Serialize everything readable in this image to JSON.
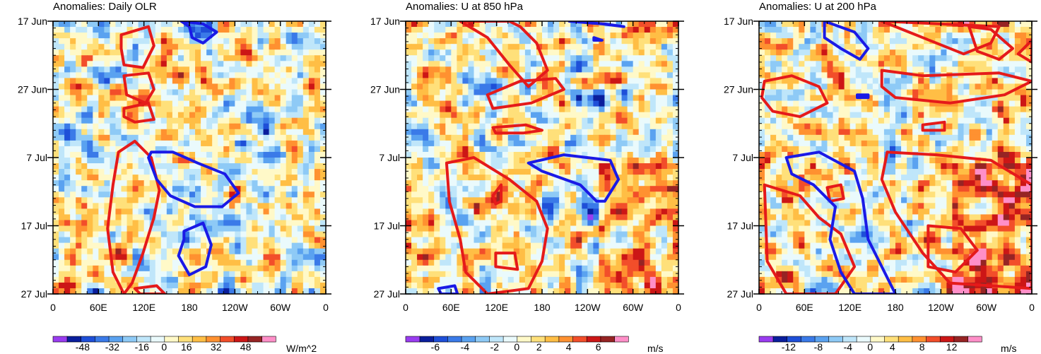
{
  "figure": {
    "colors": {
      "positive_contour": "#e51a1a",
      "negative_contour": "#1a1ae6",
      "frame": "#000000"
    }
  },
  "chart_data": [
    {
      "type": "heatmap",
      "title": "Anomalies: Daily OLR",
      "variable": "Daily OLR anomaly",
      "units": "W/m^2",
      "x_ticks": [
        "0",
        "60E",
        "120E",
        "180",
        "120W",
        "60W",
        "0"
      ],
      "y_ticks": [
        "17 Jun",
        "27 Jun",
        "7 Jul",
        "17 Jul",
        "27 Jul"
      ],
      "xlim": [
        0,
        360
      ],
      "ylim_days": [
        0,
        40
      ],
      "colorbar_labels": [
        "-48",
        "-32",
        "-16",
        "0",
        "16",
        "32",
        "48"
      ],
      "colorbar_levels": [
        -56,
        -48,
        -40,
        -32,
        -24,
        -16,
        -8,
        0,
        8,
        16,
        24,
        32,
        40,
        48,
        56
      ],
      "colorbar_colors": [
        "#9a3cf0",
        "#0a1e9c",
        "#1e4fd8",
        "#3a7ae8",
        "#5aa2f0",
        "#8ecaf6",
        "#bfe6fa",
        "#eafafc",
        "#fff9c8",
        "#ffe07a",
        "#ffbe45",
        "#ff9130",
        "#f24e2a",
        "#cc1616",
        "#962424",
        "#ff8fc8"
      ],
      "field_ranges": {
        "base_bias": 0
      },
      "positive_contours_deg_day": [
        [
          [
            25,
            5
          ],
          [
            35,
            2
          ],
          [
            37,
            9
          ],
          [
            33,
            17
          ],
          [
            26,
            16
          ],
          [
            25,
            10
          ]
        ],
        [
          [
            26,
            20
          ],
          [
            35,
            19
          ],
          [
            37,
            25
          ],
          [
            34,
            30
          ],
          [
            27,
            27
          ]
        ],
        [
          [
            26,
            32
          ],
          [
            35,
            30
          ],
          [
            37,
            36
          ],
          [
            30,
            37
          ],
          [
            26,
            35
          ]
        ],
        [
          [
            24,
            48
          ],
          [
            30,
            44
          ],
          [
            36,
            50
          ],
          [
            39,
            62
          ],
          [
            37,
            72
          ],
          [
            33,
            85
          ],
          [
            29,
            96
          ],
          [
            26,
            100
          ],
          [
            22,
            92
          ],
          [
            20,
            76
          ],
          [
            22,
            60
          ]
        ],
        [
          [
            30,
            98
          ],
          [
            38,
            97
          ],
          [
            41,
            100
          ],
          [
            32,
            100
          ]
        ]
      ],
      "negative_contours_deg_day": [
        [
          [
            47,
            0
          ],
          [
            55,
            1
          ],
          [
            60,
            4
          ],
          [
            55,
            8
          ],
          [
            51,
            6
          ],
          [
            50,
            2
          ]
        ],
        [
          [
            36,
            48
          ],
          [
            44,
            48
          ],
          [
            53,
            52
          ],
          [
            63,
            56
          ],
          [
            68,
            63
          ],
          [
            62,
            68
          ],
          [
            52,
            68
          ],
          [
            43,
            64
          ],
          [
            38,
            58
          ],
          [
            35,
            50
          ]
        ],
        [
          [
            48,
            77
          ],
          [
            55,
            74
          ],
          [
            58,
            82
          ],
          [
            56,
            90
          ],
          [
            50,
            93
          ],
          [
            46,
            86
          ],
          [
            48,
            80
          ]
        ]
      ]
    },
    {
      "type": "heatmap",
      "title": "Anomalies: U at 850 hPa",
      "variable": "Zonal wind anomaly at 850 hPa",
      "units": "m/s",
      "x_ticks": [
        "0",
        "60E",
        "120E",
        "180",
        "120W",
        "60W",
        "0"
      ],
      "y_ticks": [
        "17 Jun",
        "27 Jun",
        "7 Jul",
        "17 Jul",
        "27 Jul"
      ],
      "xlim": [
        0,
        360
      ],
      "ylim_days": [
        0,
        40
      ],
      "colorbar_labels": [
        "-6",
        "-4",
        "-2",
        "0",
        "2",
        "4",
        "6"
      ],
      "colorbar_levels": [
        -7,
        -6,
        -5,
        -4,
        -3,
        -2,
        -1,
        0,
        1,
        2,
        3,
        4,
        5,
        6,
        7
      ],
      "colorbar_colors": [
        "#9a3cf0",
        "#0a1e9c",
        "#1e4fd8",
        "#3a7ae8",
        "#5aa2f0",
        "#8ecaf6",
        "#bfe6fa",
        "#eafafc",
        "#fff9c8",
        "#ffe07a",
        "#ffbe45",
        "#ff9130",
        "#f24e2a",
        "#cc1616",
        "#962424",
        "#ff8fc8"
      ],
      "field_ranges": {
        "base_bias": 0.5
      },
      "positive_contours_deg_day": [
        [
          [
            20,
            0
          ],
          [
            30,
            6
          ],
          [
            38,
            16
          ],
          [
            45,
            24
          ],
          [
            52,
            18
          ],
          [
            48,
            8
          ],
          [
            42,
            2
          ],
          [
            38,
            0
          ]
        ],
        [
          [
            30,
            27
          ],
          [
            42,
            22
          ],
          [
            55,
            21
          ],
          [
            58,
            25
          ],
          [
            46,
            30
          ],
          [
            32,
            32
          ]
        ],
        [
          [
            32,
            39
          ],
          [
            44,
            38
          ],
          [
            50,
            40
          ],
          [
            43,
            41
          ],
          [
            33,
            41
          ]
        ],
        [
          [
            15,
            52
          ],
          [
            25,
            50
          ],
          [
            38,
            58
          ],
          [
            48,
            66
          ],
          [
            52,
            76
          ],
          [
            50,
            88
          ],
          [
            45,
            98
          ],
          [
            30,
            100
          ],
          [
            22,
            92
          ],
          [
            20,
            80
          ],
          [
            16,
            66
          ]
        ],
        [
          [
            32,
            64
          ],
          [
            35,
            60
          ],
          [
            35,
            66
          ],
          [
            33,
            67
          ]
        ],
        [
          [
            33,
            85
          ],
          [
            40,
            85
          ],
          [
            41,
            91
          ],
          [
            33,
            90
          ]
        ]
      ],
      "negative_contours_deg_day": [
        [
          [
            60,
            0
          ],
          [
            73,
            1
          ],
          [
            80,
            2
          ],
          [
            72,
            1
          ]
        ],
        [
          [
            69,
            6
          ],
          [
            72,
            7
          ],
          [
            69,
            7
          ]
        ],
        [
          [
            45,
            52
          ],
          [
            58,
            49
          ],
          [
            75,
            51
          ],
          [
            78,
            58
          ],
          [
            73,
            66
          ],
          [
            70,
            66
          ],
          [
            64,
            60
          ],
          [
            50,
            55
          ]
        ],
        [
          [
            12,
            98
          ],
          [
            18,
            97
          ],
          [
            19,
            100
          ],
          [
            13,
            100
          ]
        ]
      ]
    },
    {
      "type": "heatmap",
      "title": "Anomalies: U at 200 hPa",
      "variable": "Zonal wind anomaly at 200 hPa",
      "units": "m/s",
      "x_ticks": [
        "0",
        "60E",
        "120E",
        "180",
        "120W",
        "60W",
        "0"
      ],
      "y_ticks": [
        "17 Jun",
        "27 Jun",
        "7 Jul",
        "17 Jul",
        "27 Jul"
      ],
      "xlim": [
        0,
        360
      ],
      "ylim_days": [
        0,
        40
      ],
      "colorbar_labels": [
        "-12",
        "-8",
        "-4",
        "0",
        "4",
        "8",
        "12"
      ],
      "colorbar_levels": [
        -14,
        -12,
        -10,
        -8,
        -6,
        -4,
        -2,
        0,
        2,
        4,
        6,
        8,
        10,
        12,
        14
      ],
      "colorbar_colors": [
        "#9a3cf0",
        "#0a1e9c",
        "#1e4fd8",
        "#3a7ae8",
        "#5aa2f0",
        "#8ecaf6",
        "#bfe6fa",
        "#eafafc",
        "#fff9c8",
        "#ffe07a",
        "#ffbe45",
        "#ff9130",
        "#f24e2a",
        "#cc1616",
        "#962424",
        "#ff8fc8"
      ],
      "field_ranges": {
        "base_bias": 0.9
      },
      "positive_contours_deg_day": [
        [
          [
            45,
            0
          ],
          [
            60,
            6
          ],
          [
            75,
            12
          ],
          [
            85,
            8
          ],
          [
            88,
            2
          ]
        ],
        [
          [
            77,
            2
          ],
          [
            85,
            3
          ],
          [
            93,
            10
          ],
          [
            88,
            14
          ],
          [
            80,
            11
          ]
        ],
        [
          [
            2,
            22
          ],
          [
            12,
            20
          ],
          [
            22,
            24
          ],
          [
            25,
            30
          ],
          [
            15,
            35
          ],
          [
            5,
            33
          ],
          [
            1,
            28
          ]
        ],
        [
          [
            45,
            18
          ],
          [
            60,
            20
          ],
          [
            88,
            19
          ],
          [
            100,
            22
          ],
          [
            90,
            27
          ],
          [
            70,
            30
          ],
          [
            50,
            28
          ],
          [
            45,
            24
          ]
        ],
        [
          [
            60,
            38
          ],
          [
            68,
            37
          ],
          [
            68,
            40
          ],
          [
            60,
            40
          ]
        ],
        [
          [
            47,
            48
          ],
          [
            65,
            49
          ],
          [
            85,
            51
          ],
          [
            100,
            60
          ],
          [
            100,
            98
          ],
          [
            70,
            96
          ],
          [
            60,
            85
          ],
          [
            50,
            70
          ],
          [
            45,
            58
          ]
        ],
        [
          [
            2,
            60
          ],
          [
            15,
            64
          ],
          [
            22,
            72
          ],
          [
            30,
            78
          ],
          [
            35,
            90
          ],
          [
            28,
            100
          ],
          [
            10,
            100
          ],
          [
            3,
            88
          ]
        ],
        [
          [
            25,
            61
          ],
          [
            30,
            60
          ],
          [
            31,
            65
          ],
          [
            26,
            66
          ]
        ],
        [
          [
            62,
            75
          ],
          [
            74,
            76
          ],
          [
            80,
            84
          ],
          [
            72,
            92
          ],
          [
            62,
            90
          ]
        ],
        [
          [
            100,
            7
          ],
          [
            95,
            12
          ],
          [
            100,
            15
          ]
        ]
      ],
      "negative_contours_deg_day": [
        [
          [
            24,
            0
          ],
          [
            35,
            4
          ],
          [
            40,
            10
          ],
          [
            37,
            14
          ],
          [
            30,
            10
          ],
          [
            24,
            6
          ]
        ],
        [
          [
            36,
            27
          ],
          [
            40,
            27
          ],
          [
            40,
            28
          ],
          [
            36,
            28
          ]
        ],
        [
          [
            10,
            50
          ],
          [
            22,
            48
          ],
          [
            35,
            55
          ],
          [
            38,
            65
          ],
          [
            40,
            80
          ],
          [
            45,
            90
          ],
          [
            50,
            100
          ],
          [
            35,
            100
          ],
          [
            30,
            92
          ],
          [
            26,
            80
          ],
          [
            28,
            68
          ],
          [
            20,
            60
          ],
          [
            12,
            56
          ]
        ]
      ]
    }
  ]
}
